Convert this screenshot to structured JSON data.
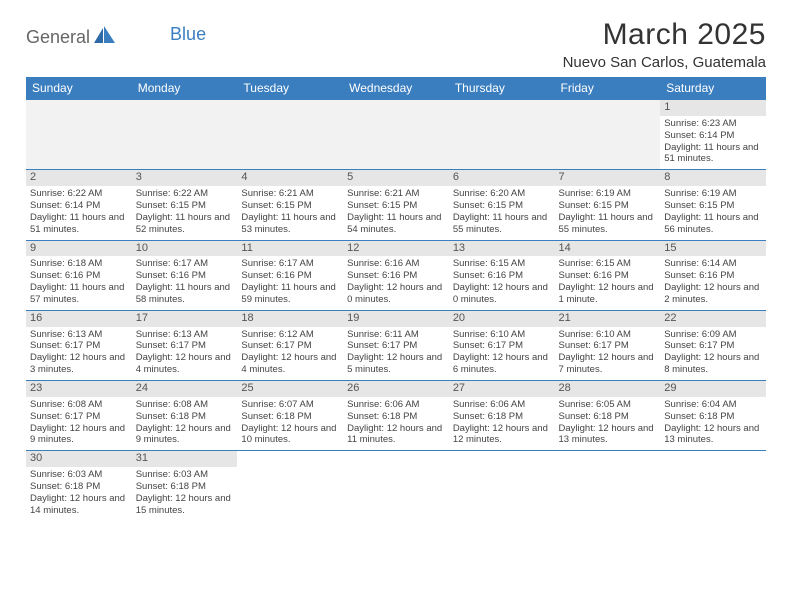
{
  "brand": {
    "general": "General",
    "blue": "Blue"
  },
  "title": "March 2025",
  "location": "Nuevo San Carlos, Guatemala",
  "colors": {
    "header_bg": "#3a7ebf",
    "header_text": "#ffffff",
    "daynum_bg": "#e6e6e6",
    "empty_bg": "#f2f2f2",
    "border": "#3a7ebf"
  },
  "weekdays": [
    "Sunday",
    "Monday",
    "Tuesday",
    "Wednesday",
    "Thursday",
    "Friday",
    "Saturday"
  ],
  "leading_empty": 6,
  "days": [
    {
      "n": "1",
      "sunrise": "Sunrise: 6:23 AM",
      "sunset": "Sunset: 6:14 PM",
      "daylight": "Daylight: 11 hours and 51 minutes."
    },
    {
      "n": "2",
      "sunrise": "Sunrise: 6:22 AM",
      "sunset": "Sunset: 6:14 PM",
      "daylight": "Daylight: 11 hours and 51 minutes."
    },
    {
      "n": "3",
      "sunrise": "Sunrise: 6:22 AM",
      "sunset": "Sunset: 6:15 PM",
      "daylight": "Daylight: 11 hours and 52 minutes."
    },
    {
      "n": "4",
      "sunrise": "Sunrise: 6:21 AM",
      "sunset": "Sunset: 6:15 PM",
      "daylight": "Daylight: 11 hours and 53 minutes."
    },
    {
      "n": "5",
      "sunrise": "Sunrise: 6:21 AM",
      "sunset": "Sunset: 6:15 PM",
      "daylight": "Daylight: 11 hours and 54 minutes."
    },
    {
      "n": "6",
      "sunrise": "Sunrise: 6:20 AM",
      "sunset": "Sunset: 6:15 PM",
      "daylight": "Daylight: 11 hours and 55 minutes."
    },
    {
      "n": "7",
      "sunrise": "Sunrise: 6:19 AM",
      "sunset": "Sunset: 6:15 PM",
      "daylight": "Daylight: 11 hours and 55 minutes."
    },
    {
      "n": "8",
      "sunrise": "Sunrise: 6:19 AM",
      "sunset": "Sunset: 6:15 PM",
      "daylight": "Daylight: 11 hours and 56 minutes."
    },
    {
      "n": "9",
      "sunrise": "Sunrise: 6:18 AM",
      "sunset": "Sunset: 6:16 PM",
      "daylight": "Daylight: 11 hours and 57 minutes."
    },
    {
      "n": "10",
      "sunrise": "Sunrise: 6:17 AM",
      "sunset": "Sunset: 6:16 PM",
      "daylight": "Daylight: 11 hours and 58 minutes."
    },
    {
      "n": "11",
      "sunrise": "Sunrise: 6:17 AM",
      "sunset": "Sunset: 6:16 PM",
      "daylight": "Daylight: 11 hours and 59 minutes."
    },
    {
      "n": "12",
      "sunrise": "Sunrise: 6:16 AM",
      "sunset": "Sunset: 6:16 PM",
      "daylight": "Daylight: 12 hours and 0 minutes."
    },
    {
      "n": "13",
      "sunrise": "Sunrise: 6:15 AM",
      "sunset": "Sunset: 6:16 PM",
      "daylight": "Daylight: 12 hours and 0 minutes."
    },
    {
      "n": "14",
      "sunrise": "Sunrise: 6:15 AM",
      "sunset": "Sunset: 6:16 PM",
      "daylight": "Daylight: 12 hours and 1 minute."
    },
    {
      "n": "15",
      "sunrise": "Sunrise: 6:14 AM",
      "sunset": "Sunset: 6:16 PM",
      "daylight": "Daylight: 12 hours and 2 minutes."
    },
    {
      "n": "16",
      "sunrise": "Sunrise: 6:13 AM",
      "sunset": "Sunset: 6:17 PM",
      "daylight": "Daylight: 12 hours and 3 minutes."
    },
    {
      "n": "17",
      "sunrise": "Sunrise: 6:13 AM",
      "sunset": "Sunset: 6:17 PM",
      "daylight": "Daylight: 12 hours and 4 minutes."
    },
    {
      "n": "18",
      "sunrise": "Sunrise: 6:12 AM",
      "sunset": "Sunset: 6:17 PM",
      "daylight": "Daylight: 12 hours and 4 minutes."
    },
    {
      "n": "19",
      "sunrise": "Sunrise: 6:11 AM",
      "sunset": "Sunset: 6:17 PM",
      "daylight": "Daylight: 12 hours and 5 minutes."
    },
    {
      "n": "20",
      "sunrise": "Sunrise: 6:10 AM",
      "sunset": "Sunset: 6:17 PM",
      "daylight": "Daylight: 12 hours and 6 minutes."
    },
    {
      "n": "21",
      "sunrise": "Sunrise: 6:10 AM",
      "sunset": "Sunset: 6:17 PM",
      "daylight": "Daylight: 12 hours and 7 minutes."
    },
    {
      "n": "22",
      "sunrise": "Sunrise: 6:09 AM",
      "sunset": "Sunset: 6:17 PM",
      "daylight": "Daylight: 12 hours and 8 minutes."
    },
    {
      "n": "23",
      "sunrise": "Sunrise: 6:08 AM",
      "sunset": "Sunset: 6:17 PM",
      "daylight": "Daylight: 12 hours and 9 minutes."
    },
    {
      "n": "24",
      "sunrise": "Sunrise: 6:08 AM",
      "sunset": "Sunset: 6:18 PM",
      "daylight": "Daylight: 12 hours and 9 minutes."
    },
    {
      "n": "25",
      "sunrise": "Sunrise: 6:07 AM",
      "sunset": "Sunset: 6:18 PM",
      "daylight": "Daylight: 12 hours and 10 minutes."
    },
    {
      "n": "26",
      "sunrise": "Sunrise: 6:06 AM",
      "sunset": "Sunset: 6:18 PM",
      "daylight": "Daylight: 12 hours and 11 minutes."
    },
    {
      "n": "27",
      "sunrise": "Sunrise: 6:06 AM",
      "sunset": "Sunset: 6:18 PM",
      "daylight": "Daylight: 12 hours and 12 minutes."
    },
    {
      "n": "28",
      "sunrise": "Sunrise: 6:05 AM",
      "sunset": "Sunset: 6:18 PM",
      "daylight": "Daylight: 12 hours and 13 minutes."
    },
    {
      "n": "29",
      "sunrise": "Sunrise: 6:04 AM",
      "sunset": "Sunset: 6:18 PM",
      "daylight": "Daylight: 12 hours and 13 minutes."
    },
    {
      "n": "30",
      "sunrise": "Sunrise: 6:03 AM",
      "sunset": "Sunset: 6:18 PM",
      "daylight": "Daylight: 12 hours and 14 minutes."
    },
    {
      "n": "31",
      "sunrise": "Sunrise: 6:03 AM",
      "sunset": "Sunset: 6:18 PM",
      "daylight": "Daylight: 12 hours and 15 minutes."
    }
  ]
}
